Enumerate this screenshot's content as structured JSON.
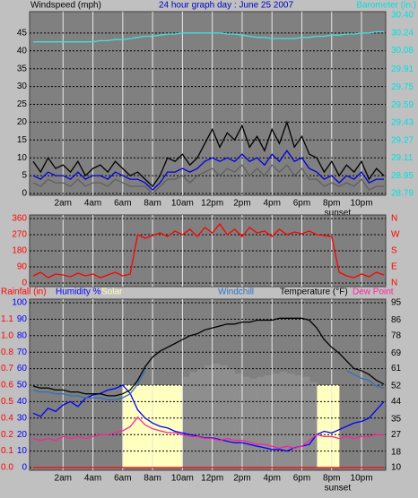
{
  "chart_data": [
    {
      "type": "line",
      "title": "24 hour graph day : June 25 2007",
      "ylabel": "Windspeed (mph)",
      "y2label": "Barometer (in.)",
      "ytick_color": "#000000",
      "y2tick_color": "#00e0e0",
      "title_color": "#0000c0",
      "x": [
        0,
        0.5,
        1,
        1.5,
        2,
        2.5,
        3,
        3.5,
        4,
        4.5,
        5,
        5.5,
        6,
        6.5,
        7,
        7.5,
        8,
        8.5,
        9,
        9.5,
        10,
        10.5,
        11,
        11.5,
        12,
        12.5,
        13,
        13.5,
        14,
        14.5,
        15,
        15.5,
        16,
        16.5,
        17,
        17.5,
        18,
        18.5,
        19,
        19.5,
        20,
        20.5,
        21,
        21.5,
        22,
        22.5,
        23,
        23.5
      ],
      "xlim": [
        0,
        23.5
      ],
      "xticks": [
        {
          "value": 2,
          "label": "2am"
        },
        {
          "value": 4,
          "label": "4am"
        },
        {
          "value": 6,
          "label": "6am"
        },
        {
          "value": 8,
          "label": "8am"
        },
        {
          "value": 10,
          "label": "10am"
        },
        {
          "value": 12,
          "label": "12pm"
        },
        {
          "value": 14,
          "label": "2pm"
        },
        {
          "value": 16,
          "label": "4pm"
        },
        {
          "value": 18,
          "label": "6pm"
        },
        {
          "value": 20,
          "label": "8pm"
        },
        {
          "value": 22,
          "label": "10pm"
        }
      ],
      "ylim": [
        0,
        50
      ],
      "yticks": [
        0,
        5,
        10,
        15,
        20,
        25,
        30,
        35,
        40,
        45
      ],
      "y2lim": [
        28.79,
        30.4
      ],
      "y2ticks": [
        28.79,
        28.95,
        29.11,
        29.27,
        29.43,
        29.59,
        29.75,
        29.91,
        30.08,
        30.24,
        {
          "value": 30.4,
          "label": "30.40"
        }
      ],
      "annotations": [
        {
          "text": "sunset",
          "x": 20.4
        }
      ],
      "series": [
        {
          "color": "#606060",
          "values": [
            3,
            2,
            4,
            3,
            3,
            2,
            4,
            2,
            3,
            3,
            2,
            4,
            3,
            2,
            2,
            2,
            0,
            2,
            4,
            4,
            5,
            3,
            5,
            6,
            7,
            5,
            7,
            6,
            8,
            5,
            7,
            5,
            8,
            6,
            8,
            5,
            7,
            4,
            4,
            2,
            3,
            2,
            3,
            2,
            4,
            1,
            2,
            2
          ]
        },
        {
          "color": "#000000",
          "values": [
            9,
            6,
            10,
            7,
            8,
            6,
            9,
            5,
            7,
            8,
            6,
            9,
            7,
            5,
            6,
            4,
            2,
            5,
            10,
            9,
            11,
            8,
            10,
            14,
            18,
            13,
            17,
            15,
            19,
            13,
            16,
            12,
            18,
            14,
            20,
            13,
            16,
            11,
            10,
            6,
            9,
            5,
            8,
            6,
            9,
            4,
            7,
            5
          ]
        },
        {
          "color": "#0000e0",
          "values": [
            5,
            4,
            6,
            5,
            5,
            4,
            6,
            4,
            5,
            5,
            4,
            6,
            5,
            4,
            4,
            3,
            1,
            3,
            6,
            6,
            7,
            6,
            7,
            9,
            10,
            9,
            10,
            9,
            11,
            9,
            10,
            8,
            11,
            9,
            12,
            9,
            10,
            7,
            6,
            4,
            5,
            3,
            5,
            4,
            6,
            3,
            4,
            4
          ]
        },
        {
          "color": "#40e0e0",
          "axis": "y2",
          "values": [
            30.16,
            30.16,
            30.16,
            30.16,
            30.16,
            30.16,
            30.16,
            30.16,
            30.16,
            30.17,
            30.17,
            30.18,
            30.18,
            30.19,
            30.2,
            30.21,
            30.21,
            30.22,
            30.23,
            30.23,
            30.24,
            30.24,
            30.24,
            30.24,
            30.24,
            30.24,
            30.23,
            30.23,
            30.22,
            30.21,
            30.2,
            30.2,
            30.19,
            30.19,
            30.19,
            30.19,
            30.2,
            30.2,
            30.21,
            30.21,
            30.22,
            30.22,
            30.23,
            30.23,
            30.24,
            30.24,
            30.25,
            30.25
          ]
        }
      ]
    },
    {
      "type": "line",
      "ytick_color": "#ff0000",
      "y2tick_color": "#ff0000",
      "x": [
        0,
        0.5,
        1,
        1.5,
        2,
        2.5,
        3,
        3.5,
        4,
        4.5,
        5,
        5.5,
        6,
        6.5,
        7,
        7.5,
        8,
        8.5,
        9,
        9.5,
        10,
        10.5,
        11,
        11.5,
        12,
        12.5,
        13,
        13.5,
        14,
        14.5,
        15,
        15.5,
        16,
        16.5,
        17,
        17.5,
        18,
        18.5,
        19,
        19.5,
        20,
        20.5,
        21,
        21.5,
        22,
        22.5,
        23,
        23.5
      ],
      "xlim": [
        0,
        23.5
      ],
      "vgrid": [
        2,
        4,
        6,
        8,
        10,
        12,
        14,
        16,
        18,
        20,
        22
      ],
      "ylim": [
        0,
        360
      ],
      "yticks": [
        0,
        90,
        180,
        270,
        360
      ],
      "y2lim": [
        0,
        360
      ],
      "y2ticks": [
        {
          "value": 0,
          "label": "N"
        },
        {
          "value": 90,
          "label": "E"
        },
        {
          "value": 180,
          "label": "S"
        },
        {
          "value": 270,
          "label": "W"
        },
        {
          "value": 360,
          "label": "N"
        }
      ],
      "series": [
        {
          "color": "#ff0000",
          "values": [
            40,
            60,
            30,
            50,
            45,
            35,
            55,
            40,
            50,
            30,
            45,
            60,
            40,
            50,
            270,
            250,
            265,
            280,
            260,
            290,
            270,
            300,
            260,
            310,
            280,
            330,
            270,
            300,
            260,
            310,
            280,
            290,
            260,
            300,
            270,
            285,
            275,
            290,
            270,
            265,
            260,
            60,
            40,
            30,
            50,
            35,
            60,
            45
          ]
        }
      ]
    },
    {
      "type": "line",
      "ytick_color": "#0000ff",
      "y2tick_color": "#000000",
      "y3tick_color": "#ff0000",
      "x": [
        0,
        0.5,
        1,
        1.5,
        2,
        2.5,
        3,
        3.5,
        4,
        4.5,
        5,
        5.5,
        6,
        6.5,
        7,
        7.5,
        8,
        8.5,
        9,
        9.5,
        10,
        10.5,
        11,
        11.5,
        12,
        12.5,
        13,
        13.5,
        14,
        14.5,
        15,
        15.5,
        16,
        16.5,
        17,
        17.5,
        18,
        18.5,
        19,
        19.5,
        20,
        20.5,
        21,
        21.5,
        22,
        22.5,
        23,
        23.5
      ],
      "xlim": [
        0,
        23.5
      ],
      "xticks": [
        {
          "value": 2,
          "label": "2am"
        },
        {
          "value": 4,
          "label": "4am"
        },
        {
          "value": 6,
          "label": "6am"
        },
        {
          "value": 8,
          "label": "8am"
        },
        {
          "value": 10,
          "label": "10am"
        },
        {
          "value": 12,
          "label": "12pm"
        },
        {
          "value": 14,
          "label": "2pm"
        },
        {
          "value": 16,
          "label": "4pm"
        },
        {
          "value": 18,
          "label": "6pm"
        },
        {
          "value": 20,
          "label": "8pm"
        },
        {
          "value": 22,
          "label": "10pm"
        }
      ],
      "ylim": [
        0,
        100
      ],
      "yticks": [
        0,
        10,
        20,
        30,
        40,
        50,
        60,
        70,
        80,
        90,
        100
      ],
      "y2lim": [
        10,
        95
      ],
      "y2ticks": [
        10,
        18,
        27,
        35,
        44,
        52,
        61,
        69,
        78,
        86,
        95
      ],
      "y3lim": [
        0,
        1.2
      ],
      "y3ticks": [
        {
          "value": 0,
          "label": "0.0"
        },
        {
          "value": 0.12,
          "label": "0.1"
        },
        {
          "value": 0.24,
          "label": "0.2"
        },
        {
          "value": 0.36,
          "label": "0.4"
        },
        {
          "value": 0.48,
          "label": "0.5"
        },
        {
          "value": 0.6,
          "label": "0.6"
        },
        {
          "value": 0.72,
          "label": "0.7"
        },
        {
          "value": 0.84,
          "label": "0.8"
        },
        {
          "value": 0.96,
          "label": "1.0"
        },
        {
          "value": 1.08,
          "label": "1.1"
        }
      ],
      "annotations": [
        {
          "text": "sunset",
          "x": 20.4
        }
      ],
      "series": [
        {
          "name": "Rainfall (in)",
          "color": "#ff0000",
          "axis": "y3",
          "values": [
            0,
            0,
            0,
            0,
            0,
            0,
            0,
            0,
            0,
            0,
            0,
            0,
            0,
            0,
            0,
            0,
            0,
            0,
            0,
            0,
            0,
            0,
            0,
            0,
            0,
            0,
            0,
            0,
            0,
            0,
            0,
            0,
            0,
            0,
            0,
            0,
            0,
            0,
            0,
            0,
            0,
            0,
            0,
            0,
            0,
            0,
            0,
            0
          ]
        },
        {
          "name": "Humidity %",
          "color": "#0000ff",
          "values": [
            33,
            31,
            36,
            34,
            38,
            40,
            37,
            42,
            44,
            45,
            47,
            48,
            50,
            45,
            35,
            30,
            27,
            25,
            24,
            22,
            21,
            20,
            19,
            18,
            18,
            17,
            16,
            15,
            15,
            14,
            13,
            12,
            11,
            11,
            10,
            12,
            13,
            14,
            20,
            22,
            21,
            23,
            25,
            27,
            28,
            30,
            35,
            40
          ]
        },
        {
          "name": "Solar",
          "color": "#ffffc0",
          "area": true,
          "values": [
            0,
            0,
            0,
            0,
            0,
            0,
            0,
            0,
            0,
            0,
            0,
            0,
            50,
            50,
            50,
            50,
            50,
            50,
            50,
            50,
            50,
            50,
            50,
            50,
            50,
            50,
            50,
            50,
            50,
            50,
            50,
            50,
            50,
            50,
            50,
            50,
            50,
            50,
            50,
            50,
            50,
            0,
            0,
            0,
            0,
            0,
            0,
            0
          ]
        },
        {
          "color": "#8e8e8e",
          "area": true,
          "values": [
            null,
            null,
            null,
            null,
            null,
            null,
            null,
            null,
            null,
            null,
            null,
            null,
            null,
            null,
            null,
            null,
            null,
            null,
            null,
            null,
            55,
            58,
            60,
            62,
            63,
            62,
            60,
            57,
            55,
            54,
            55,
            56,
            57,
            58,
            57,
            56,
            55,
            52,
            null,
            null,
            null,
            null,
            null,
            null,
            null,
            null,
            null,
            null
          ]
        },
        {
          "name": "Windchill",
          "color": "#3070c0",
          "axis": "y2",
          "values": [
            50,
            49,
            49,
            48,
            48,
            47,
            47,
            46,
            46,
            46,
            45,
            45,
            46,
            48,
            53,
            60,
            null,
            null,
            null,
            null,
            null,
            null,
            null,
            null,
            null,
            null,
            null,
            null,
            null,
            null,
            null,
            null,
            null,
            null,
            null,
            null,
            null,
            null,
            null,
            null,
            null,
            null,
            60,
            58,
            56,
            55,
            52,
            51
          ]
        },
        {
          "name": "Temperature (°F)",
          "color": "#000000",
          "axis": "y2",
          "values": [
            52,
            51,
            51,
            50,
            50,
            49,
            49,
            48,
            48,
            48,
            47,
            47,
            48,
            50,
            55,
            62,
            67,
            70,
            72,
            74,
            76,
            78,
            79,
            81,
            82,
            83,
            84,
            84,
            85,
            85,
            86,
            86,
            86,
            87,
            87,
            87,
            87,
            86,
            82,
            76,
            72,
            69,
            65,
            61,
            60,
            58,
            55,
            53
          ]
        },
        {
          "name": "Dew Point",
          "color": "#ff20a0",
          "axis": "y2",
          "values": [
            25,
            24,
            25,
            24,
            26,
            25,
            26,
            25,
            26,
            27,
            27,
            28,
            29,
            31,
            36,
            32,
            30,
            29,
            28,
            28,
            27,
            26,
            26,
            25,
            25,
            24,
            25,
            24,
            24,
            23,
            22,
            22,
            21,
            20,
            21,
            20,
            21,
            24,
            27,
            26,
            26,
            25,
            26,
            25,
            26,
            26,
            27,
            27
          ]
        }
      ]
    }
  ]
}
